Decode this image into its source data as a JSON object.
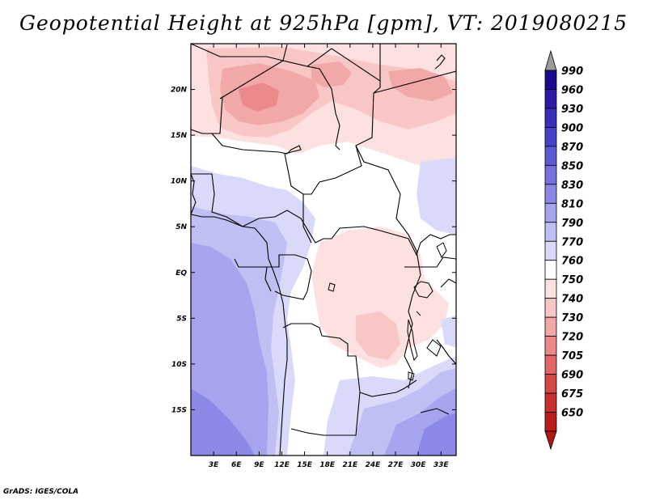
{
  "title": "Geopotential Height at 925hPa [gpm], VT: 2019080215",
  "footer": "GrADS: IGES/COLA",
  "map": {
    "lon_ticks": [
      "3E",
      "6E",
      "9E",
      "12E",
      "15E",
      "18E",
      "21E",
      "24E",
      "27E",
      "30E",
      "33E"
    ],
    "lat_ticks": [
      "20N",
      "15N",
      "10N",
      "5N",
      "EQ",
      "5S",
      "10S",
      "15S"
    ],
    "lon_values": [
      3,
      6,
      9,
      12,
      15,
      18,
      21,
      24,
      27,
      30,
      33
    ],
    "lat_values": [
      20,
      15,
      10,
      5,
      0,
      -5,
      -10,
      -15
    ],
    "lon_range": [
      0,
      35
    ],
    "lat_range": [
      -20,
      25
    ]
  },
  "colorbar": {
    "levels": [
      "990",
      "960",
      "930",
      "900",
      "870",
      "850",
      "830",
      "810",
      "790",
      "770",
      "760",
      "750",
      "740",
      "730",
      "720",
      "705",
      "690",
      "675",
      "650"
    ],
    "colors": [
      "#1a0a8c",
      "#2a1aa6",
      "#3a2fb8",
      "#4a42c6",
      "#5e5ad2",
      "#7570dc",
      "#8c89e6",
      "#a6a4ee",
      "#bfbff4",
      "#d9dafa",
      "#ffffff",
      "#fde0e0",
      "#f9c6c6",
      "#f2a8a8",
      "#ea8a8a",
      "#e06666",
      "#d44848",
      "#c63030",
      "#b81c1c"
    ],
    "top_triangle_color": "#9a9a9a",
    "bottom_triangle_color": "#b01818"
  }
}
